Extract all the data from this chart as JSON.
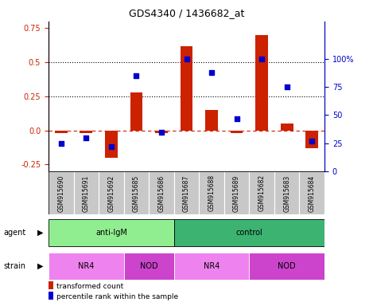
{
  "title": "GDS4340 / 1436682_at",
  "samples": [
    "GSM915690",
    "GSM915691",
    "GSM915692",
    "GSM915685",
    "GSM915686",
    "GSM915687",
    "GSM915688",
    "GSM915689",
    "GSM915682",
    "GSM915683",
    "GSM915684"
  ],
  "red_bars": [
    -0.02,
    -0.02,
    -0.2,
    0.28,
    -0.02,
    0.62,
    0.15,
    -0.02,
    0.7,
    0.05,
    -0.13
  ],
  "blue_dots": [
    25,
    30,
    22,
    85,
    35,
    100,
    88,
    47,
    100,
    75,
    27
  ],
  "ylim_left": [
    -0.3,
    0.8
  ],
  "ylim_right": [
    0,
    133.33
  ],
  "yticks_left": [
    -0.25,
    0.0,
    0.25,
    0.5,
    0.75
  ],
  "yticks_right": [
    0,
    25,
    50,
    75,
    100
  ],
  "ytick_labels_right": [
    "0",
    "25",
    "50",
    "75",
    "100%"
  ],
  "hlines_dotted": [
    0.25,
    0.5
  ],
  "zero_line_val": 0.0,
  "agent_groups": [
    {
      "label": "anti-IgM",
      "start": 0,
      "end": 5,
      "color": "#90EE90"
    },
    {
      "label": "control",
      "start": 5,
      "end": 11,
      "color": "#3CB371"
    }
  ],
  "strain_groups": [
    {
      "label": "NR4",
      "start": 0,
      "end": 3,
      "color": "#EE82EE"
    },
    {
      "label": "NOD",
      "start": 3,
      "end": 5,
      "color": "#CC44CC"
    },
    {
      "label": "NR4",
      "start": 5,
      "end": 8,
      "color": "#EE82EE"
    },
    {
      "label": "NOD",
      "start": 8,
      "end": 11,
      "color": "#CC44CC"
    }
  ],
  "bar_color": "#CC2200",
  "dot_color": "#0000CC",
  "zero_line_color": "#CC2200",
  "sample_box_color": "#C8C8C8",
  "legend_items": [
    {
      "label": "transformed count",
      "color": "#CC2200",
      "marker": "s"
    },
    {
      "label": "percentile rank within the sample",
      "color": "#0000CC",
      "marker": "s"
    }
  ],
  "title_fontsize": 9,
  "axis_fontsize": 7,
  "label_fontsize": 7,
  "sample_fontsize": 5.5
}
